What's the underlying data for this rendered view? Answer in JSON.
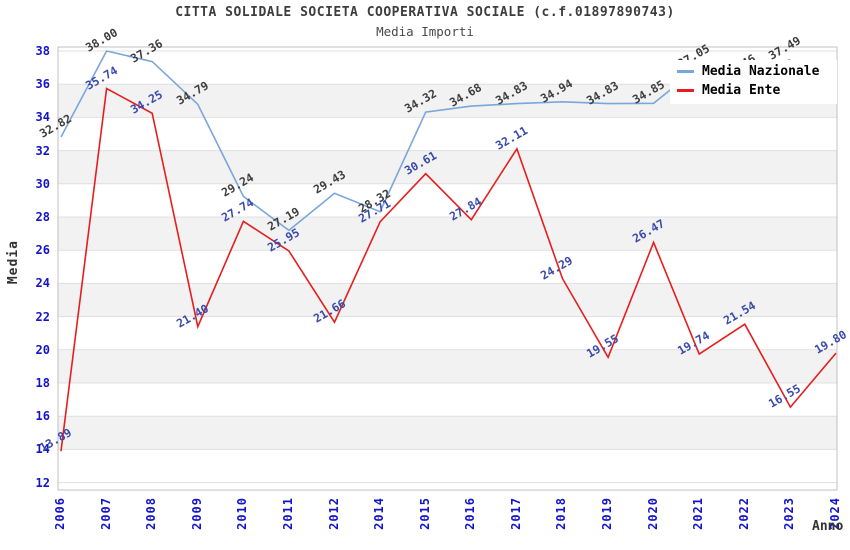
{
  "title": "CITTA SOLIDALE SOCIETA COOPERATIVA SOCIALE (c.f.01897890743)",
  "subtitle": "Media Importi",
  "axes": {
    "ylabel": "Media",
    "xlabel": "Anno"
  },
  "legend": {
    "position": "top-right",
    "items": [
      {
        "label": "Media Nazionale",
        "color": "#7aa6dc"
      },
      {
        "label": "Media Ente",
        "color": "#e61e1e"
      }
    ]
  },
  "colors": {
    "tick_label": "#1414cc",
    "grid_line": "#e0e0e0",
    "band_fill": "#f2f2f2",
    "plot_border": "#c0c0c0",
    "nazionale_line": "#7aa6dc",
    "nazionale_data_label": "#3d3d3d",
    "ente_line": "#e61e1e",
    "ente_data_label": "#3a4aab"
  },
  "chart_data": {
    "type": "line",
    "title": "CITTA SOLIDALE SOCIETA COOPERATIVA SOCIALE (c.f.01897890743)",
    "subtitle": "Media Importi",
    "xlabel": "Anno",
    "ylabel": "Media",
    "ylim": [
      12,
      38
    ],
    "ytick_step": 2,
    "grid": "horizontal, alternating shaded bands",
    "legend_position": "top-right",
    "categories": [
      "2006",
      "2007",
      "2008",
      "2009",
      "2010",
      "2011",
      "2012",
      "2014",
      "2015",
      "2016",
      "2017",
      "2018",
      "2019",
      "2020",
      "2021",
      "2022",
      "2023",
      "2024"
    ],
    "series": [
      {
        "name": "Media Nazionale",
        "color": "#7aa6dc",
        "label_color": "#3d3d3d",
        "values": [
          32.82,
          38.0,
          37.36,
          34.79,
          29.24,
          27.19,
          29.43,
          28.32,
          34.32,
          34.68,
          34.83,
          34.94,
          34.83,
          34.85,
          37.05,
          36.46,
          37.49,
          null
        ]
      },
      {
        "name": "Media Ente",
        "color": "#e61e1e",
        "label_color": "#3a4aab",
        "values": [
          13.89,
          35.74,
          34.25,
          21.4,
          27.74,
          25.95,
          21.66,
          27.71,
          30.61,
          27.84,
          32.11,
          24.29,
          19.55,
          26.47,
          19.74,
          21.54,
          16.55,
          19.8
        ]
      }
    ]
  }
}
